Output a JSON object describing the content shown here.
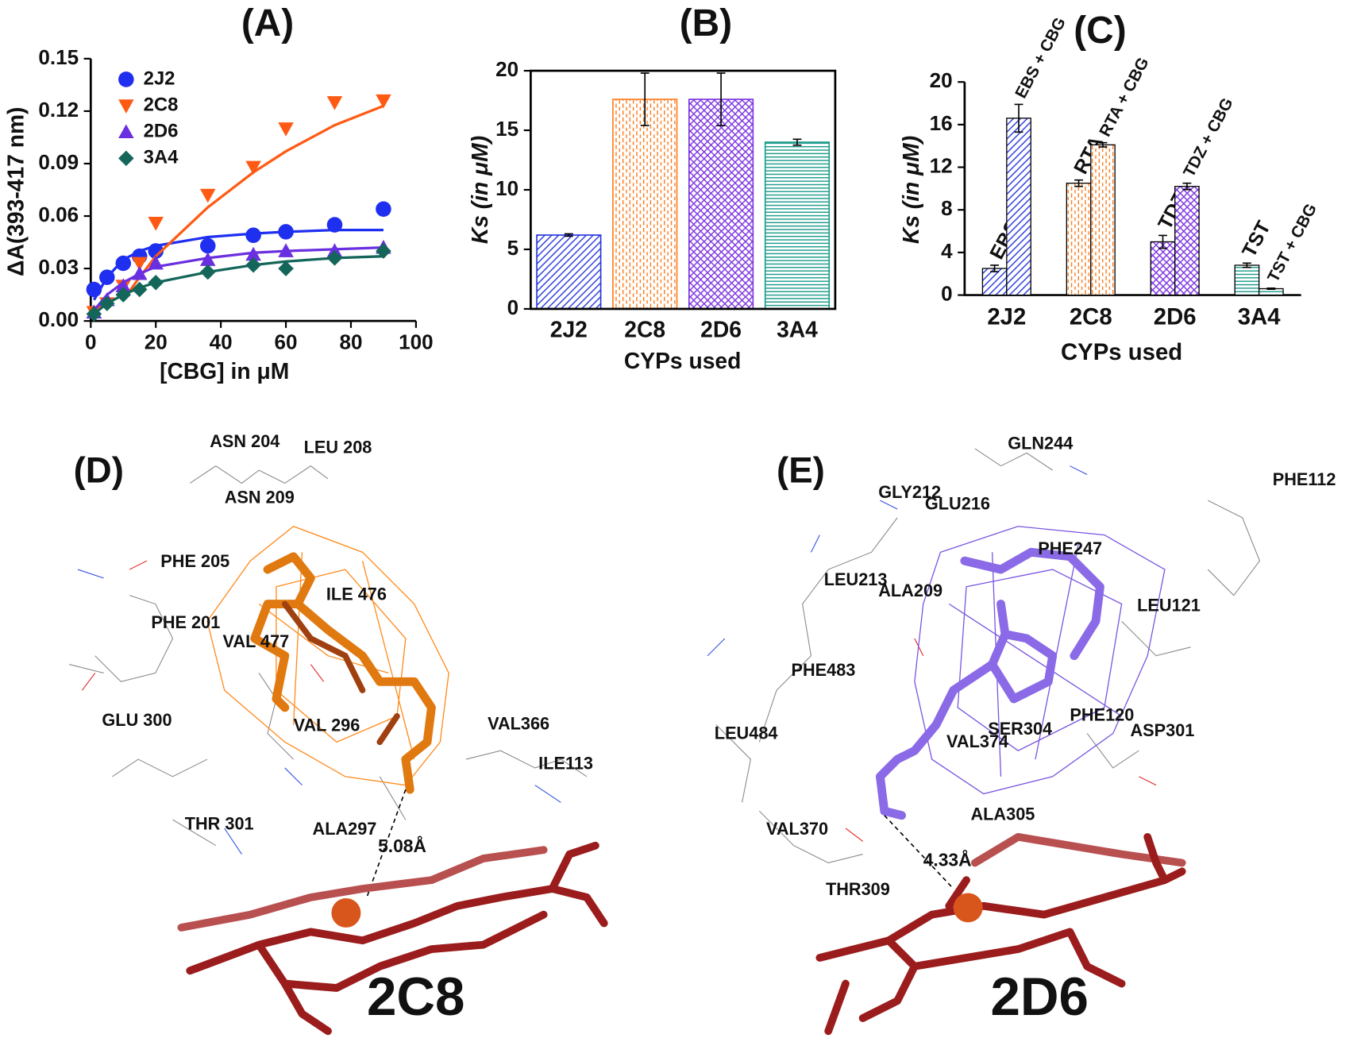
{
  "chart_data": [
    {
      "type": "scatter",
      "title": "(A)",
      "x_label": "[CBG] in μM",
      "y_label": "ΔA(393-417 nm)",
      "x": [
        1,
        5,
        10,
        15,
        20,
        36,
        50,
        60,
        75,
        90
      ],
      "series": [
        {
          "name": "2J2",
          "color": "#1f2ff0",
          "marker": "circle",
          "values": [
            0.018,
            0.025,
            0.033,
            0.037,
            0.04,
            0.043,
            0.049,
            0.051,
            0.055,
            0.064
          ],
          "fit": [
            0.012,
            0.025,
            0.035,
            0.04,
            0.043,
            0.048,
            0.05,
            0.051,
            0.052,
            0.052
          ]
        },
        {
          "name": "2C8",
          "color": "#ff5a14",
          "marker": "triangle-down",
          "values": [
            0.005,
            0.01,
            0.02,
            0.033,
            0.056,
            0.072,
            0.088,
            0.11,
            0.125,
            0.126
          ],
          "fit": [
            null,
            null,
            0.012,
            0.025,
            0.037,
            0.065,
            0.085,
            0.097,
            0.112,
            0.123
          ]
        },
        {
          "name": "2D6",
          "color": "#6a2fe0",
          "marker": "triangle-up",
          "values": [
            0.005,
            0.012,
            0.02,
            0.027,
            0.033,
            0.035,
            0.038,
            0.04,
            0.04,
            0.042
          ],
          "fit": [
            0.006,
            0.015,
            0.022,
            0.027,
            0.031,
            0.036,
            0.039,
            0.04,
            0.041,
            0.042
          ]
        },
        {
          "name": "3A4",
          "color": "#14665a",
          "marker": "diamond",
          "values": [
            0.004,
            0.01,
            0.015,
            0.018,
            0.022,
            0.028,
            0.032,
            0.03,
            0.036,
            0.04
          ],
          "fit": [
            0.004,
            0.01,
            0.015,
            0.019,
            0.022,
            0.028,
            0.032,
            0.034,
            0.036,
            0.037
          ]
        }
      ],
      "xlim": [
        0,
        100
      ],
      "xticks": [
        0,
        20,
        40,
        60,
        80,
        100
      ],
      "ylim": [
        0,
        0.15
      ],
      "yticks": [
        {
          "value": 0,
          "label": "0.00"
        },
        0.03,
        0.06,
        0.09,
        0.12,
        0.15
      ],
      "legend": "upper left"
    },
    {
      "type": "bar",
      "title": "(B)",
      "x_label": "CYPs used",
      "y_label": "Ks (in μM)",
      "categories": [
        "2J2",
        "2C8",
        "2D6",
        "3A4"
      ],
      "values": [
        6.2,
        17.6,
        17.6,
        14.0
      ],
      "errors": [
        0.1,
        2.2,
        2.2,
        0.25
      ],
      "colors": [
        "#2233dd",
        "#ff7a1a",
        "#7a30e0",
        "#1a9a8a"
      ],
      "hatches": [
        "diagonal",
        "dashes",
        "cross",
        "horizontal"
      ],
      "ylim": [
        0,
        20
      ],
      "yticks": [
        0,
        5,
        10,
        15,
        20
      ]
    },
    {
      "type": "grouped_bar",
      "title": "(C)",
      "x_label": "CYPs used",
      "y_label": "Ks (in μM)",
      "categories": [
        "2J2",
        "2C8",
        "2D6",
        "3A4"
      ],
      "colors": [
        "#2233dd",
        "#ff7a1a",
        "#7a30e0",
        "#1a9a8a"
      ],
      "hatches": [
        "diagonal",
        "dashes",
        "cross",
        "horizontal"
      ],
      "bars": [
        [
          {
            "label": "EBS",
            "value": 2.5,
            "error": 0.3
          },
          {
            "label": "EBS + CBG",
            "value": 16.6,
            "error": 1.3
          }
        ],
        [
          {
            "label": "RTA",
            "value": 10.5,
            "error": 0.3
          },
          {
            "label": "RTA + CBG",
            "value": 14.1,
            "error": 0.2
          }
        ],
        [
          {
            "label": "TDZ",
            "value": 5.0,
            "error": 0.6
          },
          {
            "label": "TDZ + CBG",
            "value": 10.2,
            "error": 0.3
          }
        ],
        [
          {
            "label": "TST",
            "value": 2.8,
            "error": 0.2
          },
          {
            "label": "TST + CBG",
            "value": 0.6,
            "error": 0.05
          }
        ]
      ],
      "ylim": [
        0,
        20
      ],
      "yticks": [
        0,
        4,
        8,
        12,
        16,
        20
      ]
    }
  ],
  "molecular_panels": [
    {
      "label": "(D)",
      "enzyme": "2C8",
      "distance": "5.08Å",
      "residues": [
        "ASN 204",
        "LEU 208",
        "ASN 209",
        "PHE 205",
        "ILE 476",
        "PHE 201",
        "VAL 477",
        "GLU 300",
        "VAL 296",
        "VAL366",
        "ILE113",
        "THR 301",
        "ALA297"
      ]
    },
    {
      "label": "(E)",
      "enzyme": "2D6",
      "distance": "4.33Å",
      "residues": [
        "GLN244",
        "PHE112",
        "GLY212",
        "GLU216",
        "PHE247",
        "LEU213",
        "ALA209",
        "LEU121",
        "PHE483",
        "PHE120",
        "SER304",
        "ASP301",
        "LEU484",
        "VAL374",
        "ALA305",
        "VAL370",
        "THR309"
      ]
    }
  ]
}
